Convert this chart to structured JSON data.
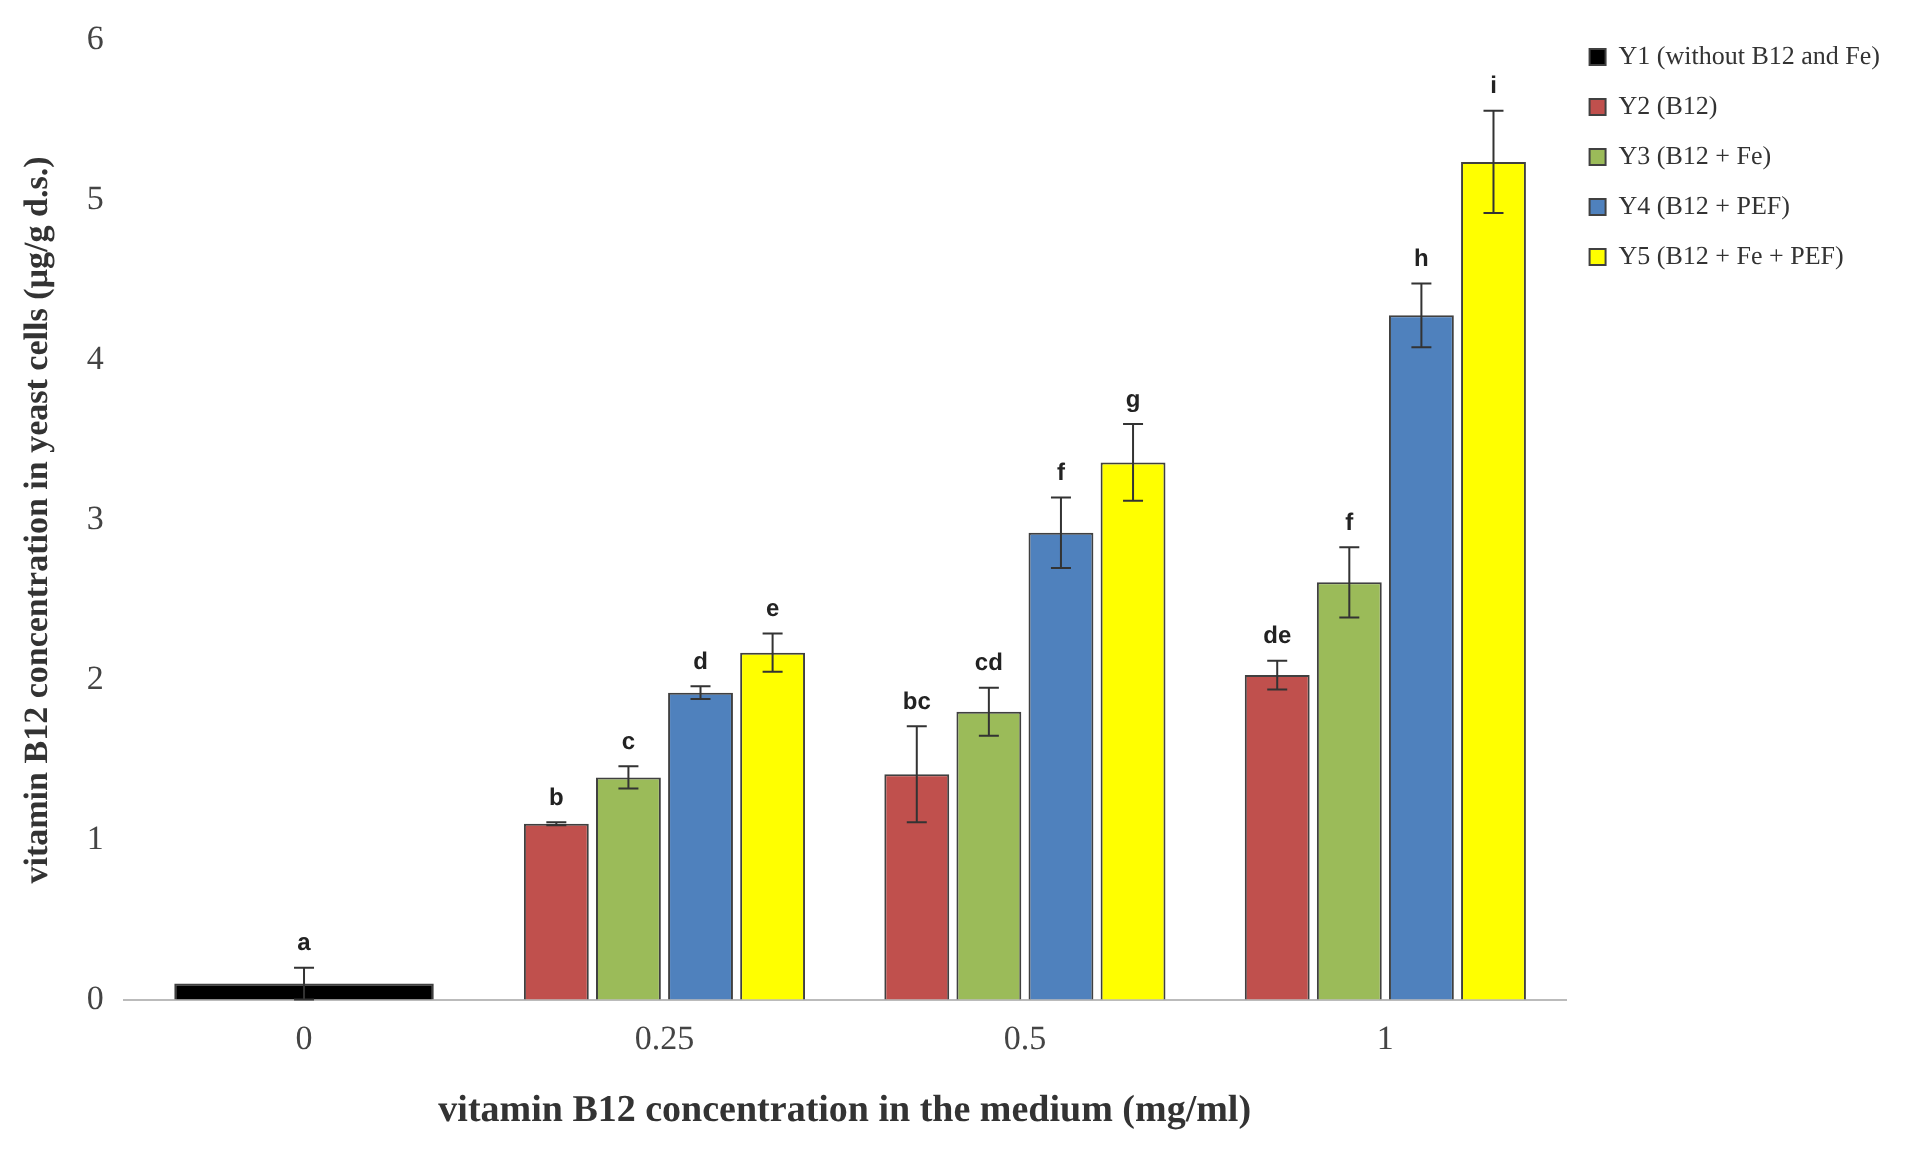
{
  "chart_data": {
    "type": "bar",
    "xlabel": "vitamin B12 concentration in the medium (mg/ml)",
    "ylabel": "vitamin B12 concentration in yeast cells (µg/g d.s.)",
    "categories": [
      "0",
      "0.25",
      "0.5",
      "1"
    ],
    "ylim": [
      0,
      6
    ],
    "yticks": [
      0,
      1,
      2,
      3,
      4,
      5,
      6
    ],
    "grid": false,
    "legend": "top right",
    "series": [
      {
        "name": "Y1 (without B12 and Fe)",
        "color": "#000000",
        "values": [
          0.1,
          null,
          null,
          null
        ],
        "errors": [
          0.1,
          null,
          null,
          null
        ],
        "value_labels": [
          "a",
          null,
          null,
          null
        ]
      },
      {
        "name": "Y2 (B12)",
        "color": "#c0504d",
        "values": [
          null,
          1.1,
          1.41,
          2.03
        ],
        "errors": [
          null,
          0.01,
          0.3,
          0.09
        ],
        "value_labels": [
          null,
          "b",
          "bc",
          "de"
        ]
      },
      {
        "name": "Y3 (B12 + Fe)",
        "color": "#9bbb59",
        "values": [
          null,
          1.39,
          1.8,
          2.61
        ],
        "errors": [
          null,
          0.07,
          0.15,
          0.22
        ],
        "value_labels": [
          null,
          "c",
          "cd",
          "f"
        ]
      },
      {
        "name": "Y4 (B12 + PEF)",
        "color": "#4f81bd",
        "values": [
          null,
          1.92,
          2.92,
          4.28
        ],
        "errors": [
          null,
          0.04,
          0.22,
          0.2
        ],
        "value_labels": [
          null,
          "d",
          "f",
          "h"
        ]
      },
      {
        "name": "Y5 (B12 + Fe + PEF)",
        "color": "#ffff00",
        "values": [
          null,
          2.17,
          3.36,
          5.24
        ],
        "errors": [
          null,
          0.12,
          0.24,
          0.32
        ],
        "value_labels": [
          null,
          "e",
          "g",
          "i"
        ]
      }
    ]
  }
}
